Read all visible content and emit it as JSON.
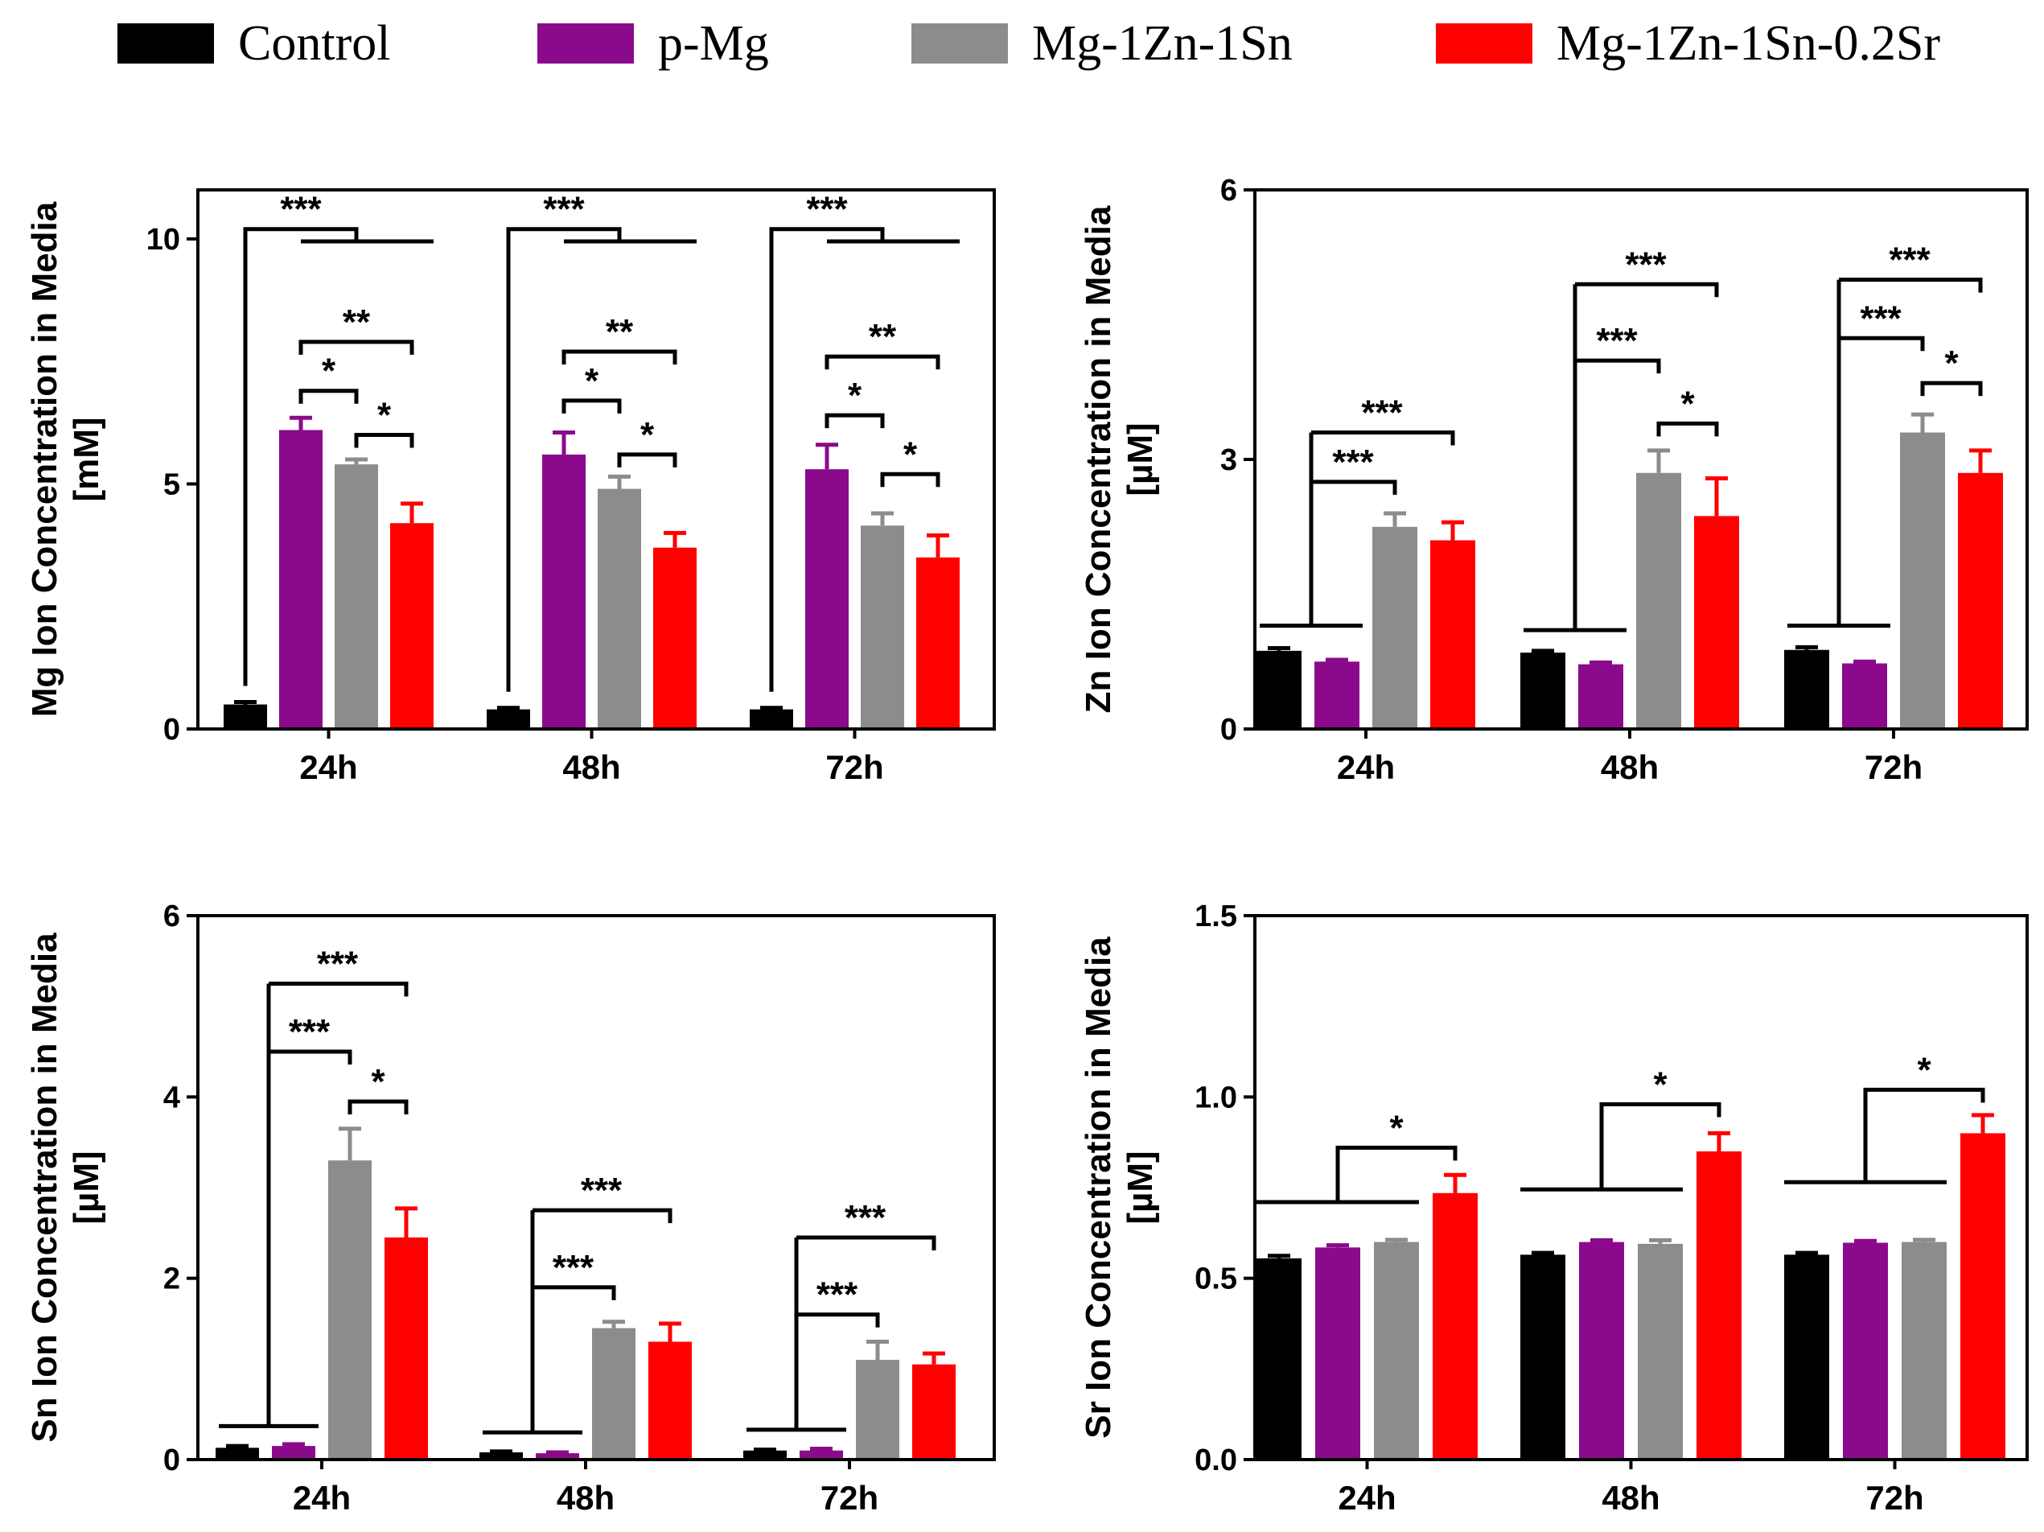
{
  "legend": [
    {
      "label": "Control",
      "color": "#000000"
    },
    {
      "label": "p-Mg",
      "color": "#8B0A8B"
    },
    {
      "label": "Mg-1Zn-1Sn",
      "color": "#8C8C8C"
    },
    {
      "label": "Mg-1Zn-1Sn-0.2Sr",
      "color": "#FF0000"
    }
  ],
  "chart_data": [
    {
      "type": "bar",
      "ylabel_line1": "Mg Ion Concentration in Media",
      "ylabel_line2": "[mM]",
      "ylim": [
        0,
        11
      ],
      "yticks": [
        0,
        5,
        10
      ],
      "ytick_labels": [
        "0",
        "5",
        "10"
      ],
      "categories": [
        "24h",
        "48h",
        "72h"
      ],
      "series": [
        {
          "name": "Control",
          "values": [
            0.5,
            0.4,
            0.4
          ],
          "errors": [
            0.05,
            0.03,
            0.03
          ]
        },
        {
          "name": "p-Mg",
          "values": [
            6.1,
            5.6,
            5.3
          ],
          "errors": [
            0.25,
            0.45,
            0.5
          ]
        },
        {
          "name": "Mg-1Zn-1Sn",
          "values": [
            5.4,
            4.9,
            4.15
          ],
          "errors": [
            0.1,
            0.25,
            0.25
          ]
        },
        {
          "name": "Mg-1Zn-1Sn-0.2Sr",
          "values": [
            4.2,
            3.7,
            3.5
          ],
          "errors": [
            0.4,
            0.3,
            0.45
          ]
        }
      ],
      "annotations": [
        {
          "group": 0,
          "kind": "bracket",
          "from": 0,
          "to": 2,
          "y": 10.2,
          "label": "***",
          "tail": 1,
          "tail_to": 3,
          "tail_y": 9.95
        },
        {
          "group": 0,
          "kind": "simple",
          "from": 1,
          "to": 3,
          "y": 7.9,
          "label": "**"
        },
        {
          "group": 0,
          "kind": "simple",
          "from": 1,
          "to": 2,
          "y": 6.9,
          "label": "*"
        },
        {
          "group": 0,
          "kind": "simple",
          "from": 2,
          "to": 3,
          "y": 6.0,
          "label": "*"
        },
        {
          "group": 1,
          "kind": "bracket",
          "from": 0,
          "to": 2,
          "y": 10.2,
          "label": "***",
          "tail": 1,
          "tail_to": 3,
          "tail_y": 9.95
        },
        {
          "group": 1,
          "kind": "simple",
          "from": 1,
          "to": 3,
          "y": 7.7,
          "label": "**"
        },
        {
          "group": 1,
          "kind": "simple",
          "from": 1,
          "to": 2,
          "y": 6.7,
          "label": "*"
        },
        {
          "group": 1,
          "kind": "simple",
          "from": 2,
          "to": 3,
          "y": 5.6,
          "label": "*"
        },
        {
          "group": 2,
          "kind": "bracket",
          "from": 0,
          "to": 2,
          "y": 10.2,
          "label": "***",
          "tail": 1,
          "tail_to": 3,
          "tail_y": 9.95
        },
        {
          "group": 2,
          "kind": "simple",
          "from": 1,
          "to": 3,
          "y": 7.6,
          "label": "**"
        },
        {
          "group": 2,
          "kind": "simple",
          "from": 1,
          "to": 2,
          "y": 6.4,
          "label": "*"
        },
        {
          "group": 2,
          "kind": "simple",
          "from": 2,
          "to": 3,
          "y": 5.2,
          "label": "*"
        }
      ]
    },
    {
      "type": "bar",
      "ylabel_line1": "Zn Ion Concentration in Media",
      "ylabel_line2": "[µM]",
      "ylim": [
        0,
        6
      ],
      "yticks": [
        0,
        3,
        6
      ],
      "ytick_labels": [
        "0",
        "3",
        "6"
      ],
      "categories": [
        "24h",
        "48h",
        "72h"
      ],
      "series": [
        {
          "name": "Control",
          "values": [
            0.87,
            0.85,
            0.88
          ],
          "errors": [
            0.03,
            0.02,
            0.03
          ]
        },
        {
          "name": "p-Mg",
          "values": [
            0.75,
            0.72,
            0.73
          ],
          "errors": [
            0.02,
            0.02,
            0.02
          ]
        },
        {
          "name": "Mg-1Zn-1Sn",
          "values": [
            2.25,
            2.85,
            3.3
          ],
          "errors": [
            0.15,
            0.25,
            0.2
          ]
        },
        {
          "name": "Mg-1Zn-1Sn-0.2Sr",
          "values": [
            2.1,
            2.37,
            2.85
          ],
          "errors": [
            0.2,
            0.42,
            0.25
          ]
        }
      ],
      "annotations": [
        {
          "group": 0,
          "kind": "stem",
          "from_group": true,
          "y": 1.15,
          "to": 2,
          "to_y": 2.75,
          "label": "***",
          "top_to": 3,
          "top_y": 3.3,
          "top_label": "***"
        },
        {
          "group": 1,
          "kind": "stem",
          "from_group": true,
          "y": 1.1,
          "to": 2,
          "to_y": 4.1,
          "label": "***",
          "top_to": 3,
          "top_y": 4.95,
          "top_label": "***"
        },
        {
          "group": 1,
          "kind": "simple",
          "from": 2,
          "to": 3,
          "y": 3.4,
          "label": "*"
        },
        {
          "group": 2,
          "kind": "stem",
          "from_group": true,
          "y": 1.15,
          "to": 2,
          "to_y": 4.35,
          "label": "***",
          "top_to": 3,
          "top_y": 5.0,
          "top_label": "***"
        },
        {
          "group": 2,
          "kind": "simple",
          "from": 2,
          "to": 3,
          "y": 3.85,
          "label": "*"
        }
      ]
    },
    {
      "type": "bar",
      "ylabel_line1": "Sn Ion Concentration in Media",
      "ylabel_line2": "[µM]",
      "ylim": [
        0,
        6
      ],
      "yticks": [
        0,
        2,
        4,
        6
      ],
      "ytick_labels": [
        "0",
        "2",
        "4",
        "6"
      ],
      "categories": [
        "24h",
        "48h",
        "72h"
      ],
      "series": [
        {
          "name": "Control",
          "values": [
            0.13,
            0.08,
            0.1
          ],
          "errors": [
            0.02,
            0.01,
            0.01
          ]
        },
        {
          "name": "p-Mg",
          "values": [
            0.15,
            0.07,
            0.1
          ],
          "errors": [
            0.02,
            0.01,
            0.02
          ]
        },
        {
          "name": "Mg-1Zn-1Sn",
          "values": [
            3.3,
            1.45,
            1.1
          ],
          "errors": [
            0.35,
            0.07,
            0.2
          ]
        },
        {
          "name": "Mg-1Zn-1Sn-0.2Sr",
          "values": [
            2.45,
            1.3,
            1.05
          ],
          "errors": [
            0.32,
            0.2,
            0.12
          ]
        }
      ],
      "annotations": [
        {
          "group": 0,
          "kind": "stem",
          "from_group": true,
          "y": 0.37,
          "to": 2,
          "to_y": 4.5,
          "label": "***",
          "top_to": 3,
          "top_y": 5.25,
          "top_label": "***"
        },
        {
          "group": 0,
          "kind": "simple",
          "from": 2,
          "to": 3,
          "y": 3.95,
          "label": "*"
        },
        {
          "group": 1,
          "kind": "stem",
          "from_group": true,
          "y": 0.3,
          "to": 2,
          "to_y": 1.9,
          "label": "***",
          "top_to": 3,
          "top_y": 2.75,
          "top_label": "***"
        },
        {
          "group": 2,
          "kind": "stem",
          "from_group": true,
          "y": 0.33,
          "to": 2,
          "to_y": 1.6,
          "label": "***",
          "top_to": 3,
          "top_y": 2.45,
          "top_label": "***"
        }
      ]
    },
    {
      "type": "bar",
      "ylabel_line1": "Sr Ion Concentration in Media",
      "ylabel_line2": "[µM]",
      "ylim": [
        0,
        1.5
      ],
      "yticks": [
        0,
        0.5,
        1.0,
        1.5
      ],
      "ytick_labels": [
        "0.0",
        "0.5",
        "1.0",
        "1.5"
      ],
      "categories": [
        "24h",
        "48h",
        "72h"
      ],
      "series": [
        {
          "name": "Control",
          "values": [
            0.555,
            0.565,
            0.565
          ],
          "errors": [
            0.007,
            0.005,
            0.005
          ]
        },
        {
          "name": "p-Mg",
          "values": [
            0.585,
            0.6,
            0.598
          ],
          "errors": [
            0.006,
            0.005,
            0.005
          ]
        },
        {
          "name": "Mg-1Zn-1Sn",
          "values": [
            0.6,
            0.595,
            0.6
          ],
          "errors": [
            0.006,
            0.01,
            0.006
          ]
        },
        {
          "name": "Mg-1Zn-1Sn-0.2Sr",
          "values": [
            0.735,
            0.85,
            0.9
          ],
          "errors": [
            0.05,
            0.05,
            0.05
          ]
        }
      ],
      "annotations": [
        {
          "group": 0,
          "kind": "sr",
          "y": 0.71,
          "to": 3,
          "to_y": 0.86,
          "label": "*"
        },
        {
          "group": 1,
          "kind": "sr",
          "y": 0.745,
          "to": 3,
          "to_y": 0.98,
          "label": "*"
        },
        {
          "group": 2,
          "kind": "sr",
          "y": 0.765,
          "to": 3,
          "to_y": 1.02,
          "label": "*"
        }
      ]
    }
  ]
}
